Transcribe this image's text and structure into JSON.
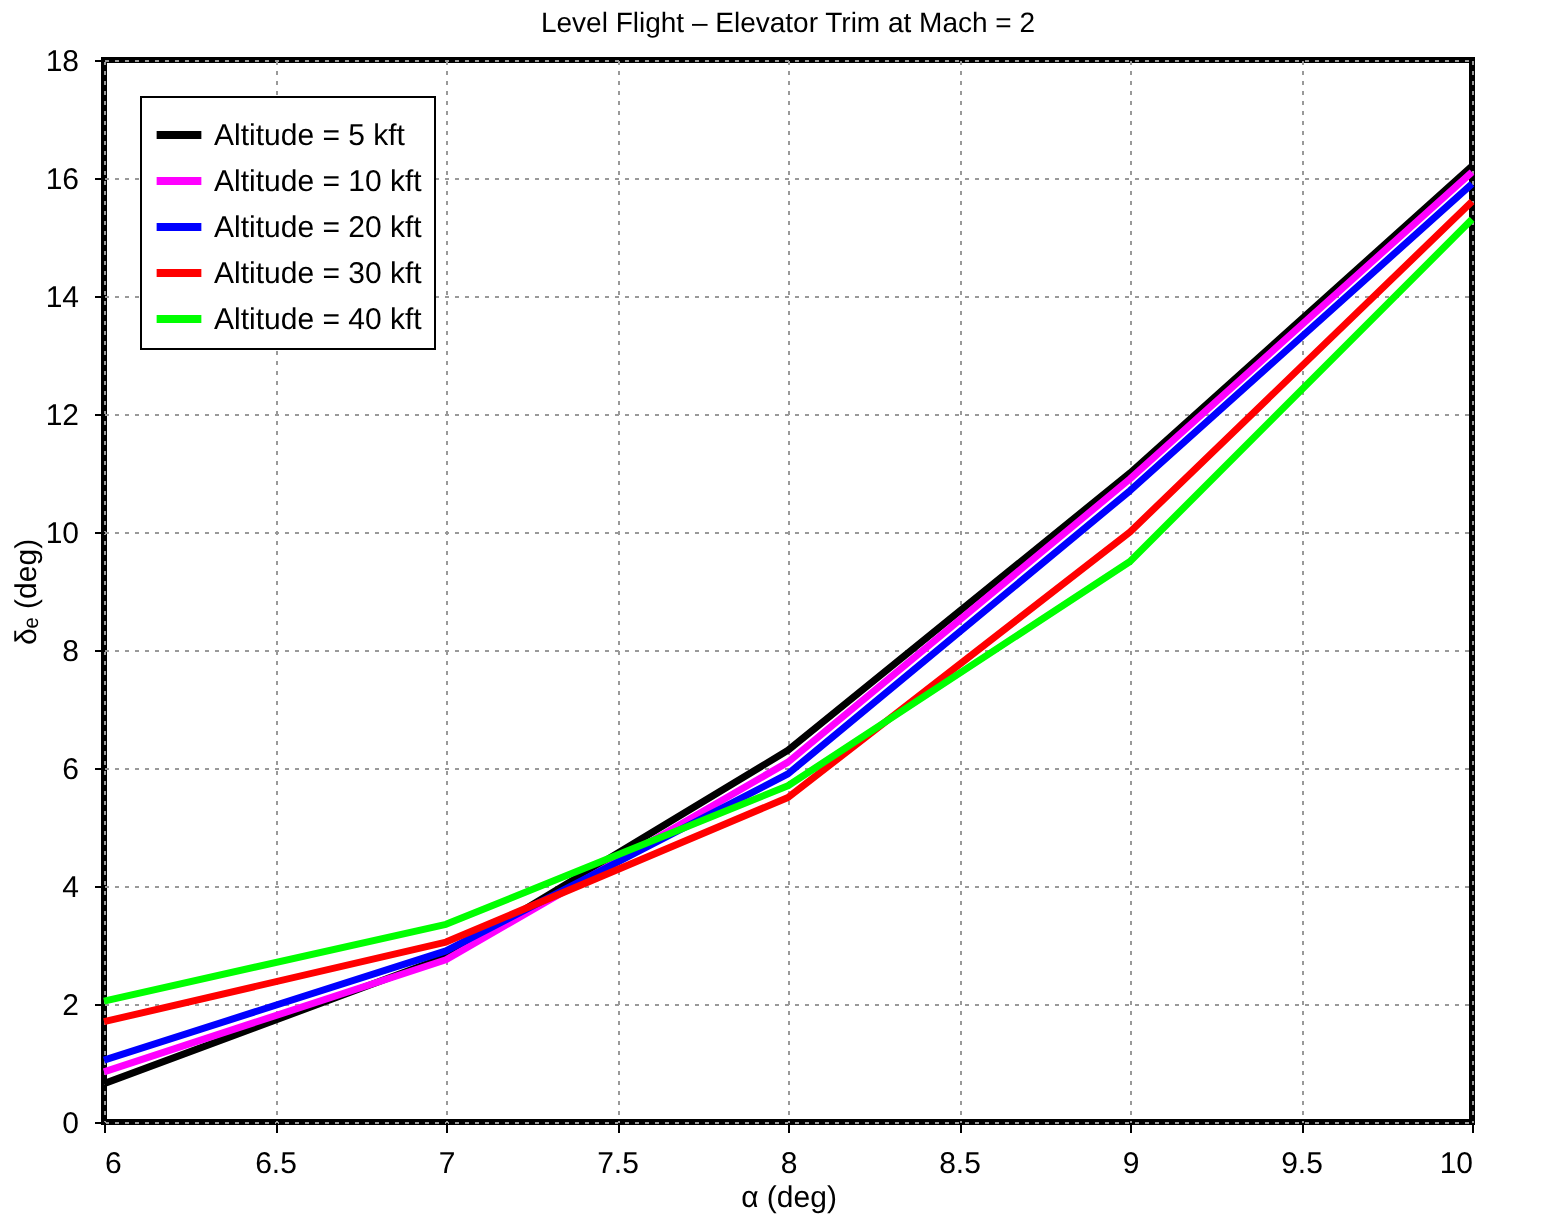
{
  "chart_data": {
    "type": "line",
    "title": "Level Flight – Elevator Trim at Mach = 2",
    "xlabel": "α (deg)",
    "ylabel": "δₑ (deg)",
    "x": [
      6,
      7,
      8,
      9,
      10
    ],
    "series": [
      {
        "name": "Altitude = 5 kft",
        "color": "#000000",
        "values": [
          0.65,
          2.8,
          6.3,
          11.0,
          16.2
        ]
      },
      {
        "name": "Altitude = 10 kft",
        "color": "#ff00ff",
        "values": [
          0.85,
          2.75,
          6.1,
          10.9,
          16.1
        ]
      },
      {
        "name": "Altitude = 20 kft",
        "color": "#0000ff",
        "values": [
          1.05,
          2.9,
          5.9,
          10.7,
          15.9
        ]
      },
      {
        "name": "Altitude = 30 kft",
        "color": "#ff0000",
        "values": [
          1.7,
          3.05,
          5.5,
          10.0,
          15.6
        ]
      },
      {
        "name": "Altitude = 40 kft",
        "color": "#00ff00",
        "values": [
          2.05,
          3.35,
          5.7,
          9.5,
          15.3
        ]
      }
    ],
    "xlim": [
      6,
      10
    ],
    "xticks": [
      6,
      6.5,
      7,
      7.5,
      8,
      8.5,
      9,
      9.5,
      10
    ],
    "ylim": [
      0,
      18
    ],
    "yticks": [
      0,
      2,
      4,
      6,
      8,
      10,
      12,
      14,
      16,
      18
    ],
    "grid": true,
    "legend": "top left",
    "marker": "none",
    "line_style": "solid"
  }
}
